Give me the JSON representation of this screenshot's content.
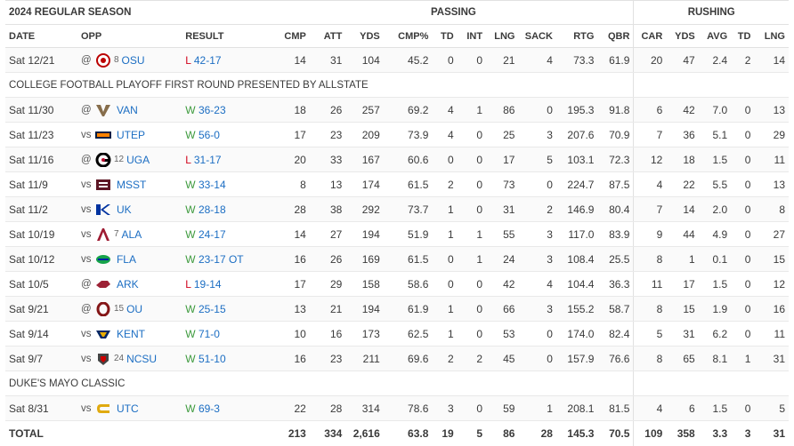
{
  "title": "2024 REGULAR SEASON",
  "groups": {
    "passing": "PASSING",
    "rushing": "RUSHING"
  },
  "columns": {
    "date": "DATE",
    "opp": "OPP",
    "result": "RESULT",
    "passing": [
      "CMP",
      "ATT",
      "YDS",
      "CMP%",
      "TD",
      "INT",
      "LNG",
      "SACK",
      "RTG",
      "QBR"
    ],
    "rushing": [
      "CAR",
      "YDS",
      "AVG",
      "TD",
      "LNG"
    ]
  },
  "rows": [
    {
      "kind": "game",
      "date": "Sat 12/21",
      "loc": "@",
      "logo": "osu-logo-icon",
      "logo_color": "#bb0000",
      "rank": "8",
      "opp": "OSU",
      "wl": "L",
      "score": "42-17",
      "p": [
        "14",
        "31",
        "104",
        "45.2",
        "0",
        "0",
        "21",
        "4",
        "73.3",
        "61.9"
      ],
      "r": [
        "20",
        "47",
        "2.4",
        "2",
        "14"
      ]
    },
    {
      "kind": "note",
      "text": "COLLEGE FOOTBALL PLAYOFF FIRST ROUND PRESENTED BY ALLSTATE"
    },
    {
      "kind": "game",
      "date": "Sat 11/30",
      "loc": "@",
      "logo": "van-logo-icon",
      "logo_color": "#866d4b",
      "rank": "",
      "opp": "VAN",
      "wl": "W",
      "score": "36-23",
      "p": [
        "18",
        "26",
        "257",
        "69.2",
        "4",
        "1",
        "86",
        "0",
        "195.3",
        "91.8"
      ],
      "r": [
        "6",
        "42",
        "7.0",
        "0",
        "13"
      ]
    },
    {
      "kind": "game",
      "date": "Sat 11/23",
      "loc": "vs",
      "logo": "utep-logo-icon",
      "logo_color": "#041e42",
      "rank": "",
      "opp": "UTEP",
      "wl": "W",
      "score": "56-0",
      "p": [
        "17",
        "23",
        "209",
        "73.9",
        "4",
        "0",
        "25",
        "3",
        "207.6",
        "70.9"
      ],
      "r": [
        "7",
        "36",
        "5.1",
        "0",
        "29"
      ]
    },
    {
      "kind": "game",
      "date": "Sat 11/16",
      "loc": "@",
      "logo": "uga-logo-icon",
      "logo_color": "#ba0c2f",
      "rank": "12",
      "opp": "UGA",
      "wl": "L",
      "score": "31-17",
      "p": [
        "20",
        "33",
        "167",
        "60.6",
        "0",
        "0",
        "17",
        "5",
        "103.1",
        "72.3"
      ],
      "r": [
        "12",
        "18",
        "1.5",
        "0",
        "11"
      ]
    },
    {
      "kind": "game",
      "date": "Sat 11/9",
      "loc": "vs",
      "logo": "msst-logo-icon",
      "logo_color": "#5d1725",
      "rank": "",
      "opp": "MSST",
      "wl": "W",
      "score": "33-14",
      "p": [
        "8",
        "13",
        "174",
        "61.5",
        "2",
        "0",
        "73",
        "0",
        "224.7",
        "87.5"
      ],
      "r": [
        "4",
        "22",
        "5.5",
        "0",
        "13"
      ]
    },
    {
      "kind": "game",
      "date": "Sat 11/2",
      "loc": "vs",
      "logo": "uk-logo-icon",
      "logo_color": "#0033a0",
      "rank": "",
      "opp": "UK",
      "wl": "W",
      "score": "28-18",
      "p": [
        "28",
        "38",
        "292",
        "73.7",
        "1",
        "0",
        "31",
        "2",
        "146.9",
        "80.4"
      ],
      "r": [
        "7",
        "14",
        "2.0",
        "0",
        "8"
      ]
    },
    {
      "kind": "game",
      "date": "Sat 10/19",
      "loc": "vs",
      "logo": "ala-logo-icon",
      "logo_color": "#9e1b32",
      "rank": "7",
      "opp": "ALA",
      "wl": "W",
      "score": "24-17",
      "p": [
        "14",
        "27",
        "194",
        "51.9",
        "1",
        "1",
        "55",
        "3",
        "117.0",
        "83.9"
      ],
      "r": [
        "9",
        "44",
        "4.9",
        "0",
        "27"
      ]
    },
    {
      "kind": "game",
      "date": "Sat 10/12",
      "loc": "vs",
      "logo": "fla-logo-icon",
      "logo_color": "#0021a5",
      "rank": "",
      "opp": "FLA",
      "wl": "W",
      "score": "23-17 OT",
      "p": [
        "16",
        "26",
        "169",
        "61.5",
        "0",
        "1",
        "24",
        "3",
        "108.4",
        "25.5"
      ],
      "r": [
        "8",
        "1",
        "0.1",
        "0",
        "15"
      ]
    },
    {
      "kind": "game",
      "date": "Sat 10/5",
      "loc": "@",
      "logo": "ark-logo-icon",
      "logo_color": "#9d2235",
      "rank": "",
      "opp": "ARK",
      "wl": "L",
      "score": "19-14",
      "p": [
        "17",
        "29",
        "158",
        "58.6",
        "0",
        "0",
        "42",
        "4",
        "104.4",
        "36.3"
      ],
      "r": [
        "11",
        "17",
        "1.5",
        "0",
        "12"
      ]
    },
    {
      "kind": "game",
      "date": "Sat 9/21",
      "loc": "@",
      "logo": "ou-logo-icon",
      "logo_color": "#841617",
      "rank": "15",
      "opp": "OU",
      "wl": "W",
      "score": "25-15",
      "p": [
        "13",
        "21",
        "194",
        "61.9",
        "1",
        "0",
        "66",
        "3",
        "155.2",
        "58.7"
      ],
      "r": [
        "8",
        "15",
        "1.9",
        "0",
        "16"
      ]
    },
    {
      "kind": "game",
      "date": "Sat 9/14",
      "loc": "vs",
      "logo": "kent-logo-icon",
      "logo_color": "#002664",
      "rank": "",
      "opp": "KENT",
      "wl": "W",
      "score": "71-0",
      "p": [
        "10",
        "16",
        "173",
        "62.5",
        "1",
        "0",
        "53",
        "0",
        "174.0",
        "82.4"
      ],
      "r": [
        "5",
        "31",
        "6.2",
        "0",
        "11"
      ]
    },
    {
      "kind": "game",
      "date": "Sat 9/7",
      "loc": "vs",
      "logo": "ncsu-logo-icon",
      "logo_color": "#cc0000",
      "rank": "24",
      "opp": "NCSU",
      "wl": "W",
      "score": "51-10",
      "p": [
        "16",
        "23",
        "211",
        "69.6",
        "2",
        "2",
        "45",
        "0",
        "157.9",
        "76.6"
      ],
      "r": [
        "8",
        "65",
        "8.1",
        "1",
        "31"
      ]
    },
    {
      "kind": "note",
      "text": "DUKE'S MAYO CLASSIC"
    },
    {
      "kind": "game",
      "date": "Sat 8/31",
      "loc": "vs",
      "logo": "utc-logo-icon",
      "logo_color": "#e0aa0f",
      "rank": "",
      "opp": "UTC",
      "wl": "W",
      "score": "69-3",
      "p": [
        "22",
        "28",
        "314",
        "78.6",
        "3",
        "0",
        "59",
        "1",
        "208.1",
        "81.5"
      ],
      "r": [
        "4",
        "6",
        "1.5",
        "0",
        "5"
      ]
    }
  ],
  "total": {
    "label": "TOTAL",
    "p": [
      "213",
      "334",
      "2,616",
      "63.8",
      "19",
      "5",
      "86",
      "28",
      "145.3",
      "70.5"
    ],
    "r": [
      "109",
      "358",
      "3.3",
      "3",
      "31"
    ]
  }
}
